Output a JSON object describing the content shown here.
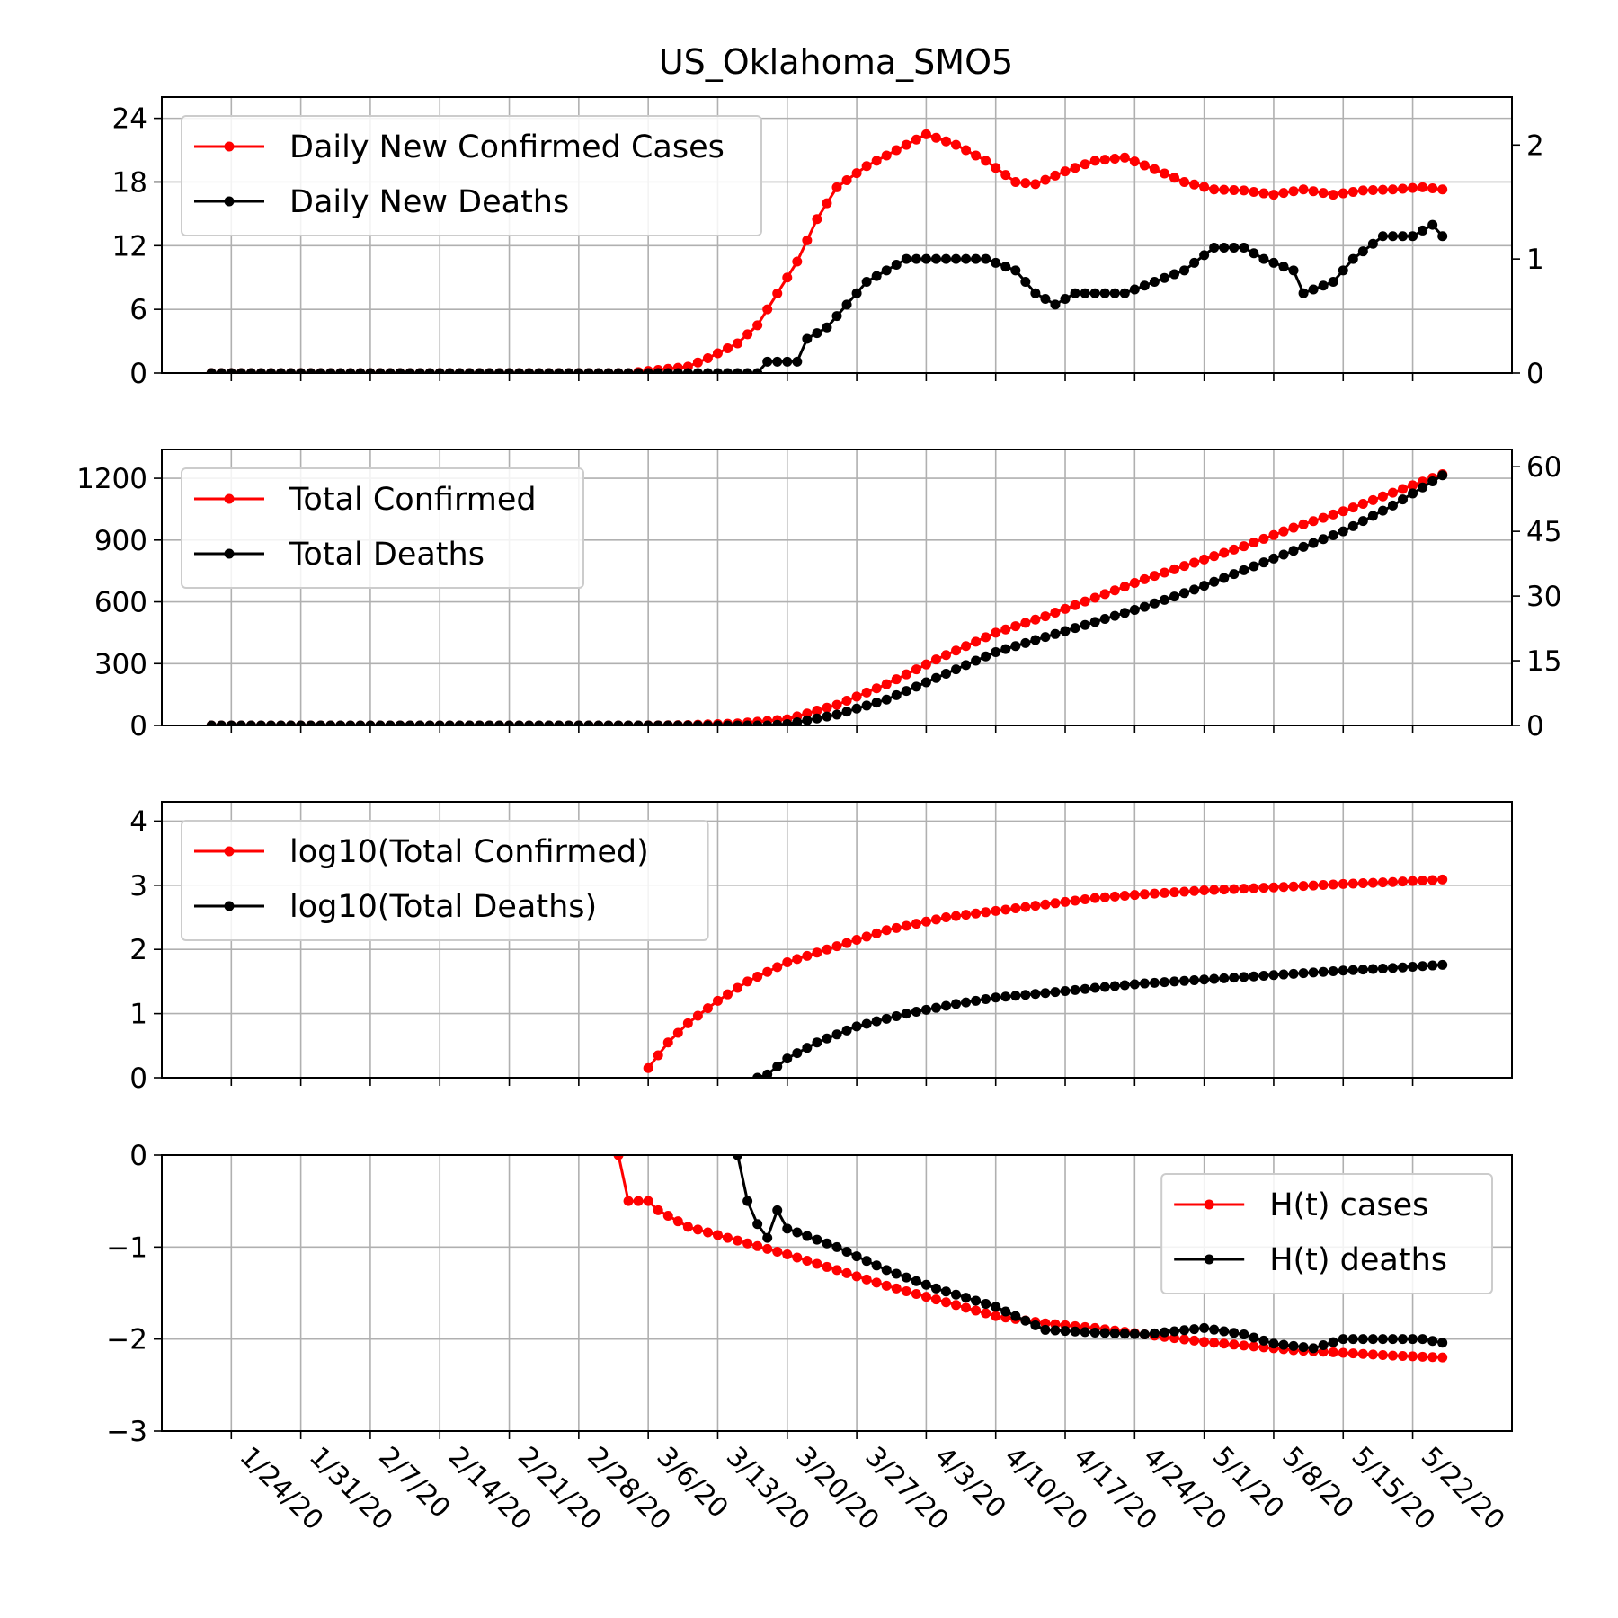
{
  "title": "US_Oklahoma_SMO5",
  "colors": {
    "cases": "#ff0000",
    "deaths": "#000000",
    "grid": "#b0b0b0"
  },
  "chart_data": [
    {
      "type": "line",
      "panel": "daily",
      "ylim_left": [
        0,
        26
      ],
      "yticks_left": [
        "0",
        "6",
        "12",
        "18",
        "24"
      ],
      "ylim_right": [
        0,
        2.42
      ],
      "yticks_right": [
        "0",
        "1",
        "2"
      ],
      "grid": true,
      "legend_placement": "top-left",
      "series": [
        {
          "name": "Daily New Confirmed Cases",
          "axis": "left",
          "color": "#ff0000",
          "knots": [
            [
              "1/22/20",
              0
            ],
            [
              "3/4/20",
              0
            ],
            [
              "3/10/20",
              0.6
            ],
            [
              "3/12/20",
              1.4
            ],
            [
              "3/15/20",
              2.8
            ],
            [
              "3/17/20",
              4.5
            ],
            [
              "3/19/20",
              7.5
            ],
            [
              "3/21/20",
              10.5
            ],
            [
              "3/23/20",
              14.5
            ],
            [
              "3/25/20",
              17.5
            ],
            [
              "3/28/20",
              19.5
            ],
            [
              "3/31/20",
              21
            ],
            [
              "4/3/20",
              22.5
            ],
            [
              "4/6/20",
              21.5
            ],
            [
              "4/9/20",
              20
            ],
            [
              "4/12/20",
              18
            ],
            [
              "4/14/20",
              17.8
            ],
            [
              "4/17/20",
              19
            ],
            [
              "4/20/20",
              20
            ],
            [
              "4/23/20",
              20.3
            ],
            [
              "4/26/20",
              19.2
            ],
            [
              "4/29/20",
              18
            ],
            [
              "5/2/20",
              17.3
            ],
            [
              "5/5/20",
              17.2
            ],
            [
              "5/8/20",
              16.8
            ],
            [
              "5/11/20",
              17.3
            ],
            [
              "5/14/20",
              16.8
            ],
            [
              "5/17/20",
              17.2
            ],
            [
              "5/20/20",
              17.3
            ],
            [
              "5/23/20",
              17.5
            ],
            [
              "5/25/20",
              17.3
            ]
          ]
        },
        {
          "name": "Daily New Deaths",
          "axis": "right",
          "color": "#000000",
          "knots": [
            [
              "1/22/20",
              0
            ],
            [
              "3/17/20",
              0
            ],
            [
              "3/18/20",
              0.1
            ],
            [
              "3/21/20",
              0.1
            ],
            [
              "3/22/20",
              0.3
            ],
            [
              "3/24/20",
              0.4
            ],
            [
              "3/26/20",
              0.6
            ],
            [
              "3/28/20",
              0.8
            ],
            [
              "3/30/20",
              0.9
            ],
            [
              "4/1/20",
              1
            ],
            [
              "4/6/20",
              1
            ],
            [
              "4/9/20",
              1
            ],
            [
              "4/12/20",
              0.9
            ],
            [
              "4/14/20",
              0.7
            ],
            [
              "4/16/20",
              0.6
            ],
            [
              "4/18/20",
              0.7
            ],
            [
              "4/23/20",
              0.7
            ],
            [
              "4/26/20",
              0.8
            ],
            [
              "4/29/20",
              0.9
            ],
            [
              "5/2/20",
              1.1
            ],
            [
              "5/5/20",
              1.1
            ],
            [
              "5/7/20",
              1
            ],
            [
              "5/10/20",
              0.9
            ],
            [
              "5/11/20",
              0.7
            ],
            [
              "5/14/20",
              0.8
            ],
            [
              "5/16/20",
              1
            ],
            [
              "5/19/20",
              1.2
            ],
            [
              "5/22/20",
              1.2
            ],
            [
              "5/24/20",
              1.3
            ],
            [
              "5/25/20",
              1.2
            ]
          ]
        }
      ]
    },
    {
      "type": "line",
      "panel": "cumulative",
      "ylim_left": [
        0,
        1340
      ],
      "yticks_left": [
        "0",
        "300",
        "600",
        "900",
        "1200"
      ],
      "ylim_right": [
        0,
        64
      ],
      "yticks_right": [
        "0",
        "15",
        "30",
        "45",
        "60"
      ],
      "grid": true,
      "legend_placement": "top-left",
      "series": [
        {
          "name": "Total Confirmed",
          "axis": "left",
          "color": "#ff0000",
          "knots": [
            [
              "1/22/20",
              0
            ],
            [
              "3/5/20",
              0
            ],
            [
              "3/10/20",
              2
            ],
            [
              "3/15/20",
              10
            ],
            [
              "3/20/20",
              30
            ],
            [
              "3/25/20",
              100
            ],
            [
              "3/30/20",
              200
            ],
            [
              "4/4/20",
              320
            ],
            [
              "4/10/20",
              450
            ],
            [
              "4/15/20",
              530
            ],
            [
              "4/20/20",
              620
            ],
            [
              "4/25/20",
              710
            ],
            [
              "4/30/20",
              790
            ],
            [
              "5/5/20",
              870
            ],
            [
              "5/10/20",
              960
            ],
            [
              "5/15/20",
              1040
            ],
            [
              "5/20/20",
              1130
            ],
            [
              "5/25/20",
              1220
            ]
          ]
        },
        {
          "name": "Total Deaths",
          "axis": "right",
          "color": "#000000",
          "knots": [
            [
              "1/22/20",
              0
            ],
            [
              "3/18/20",
              0
            ],
            [
              "3/20/20",
              0.3
            ],
            [
              "3/25/20",
              2.5
            ],
            [
              "3/30/20",
              6
            ],
            [
              "4/4/20",
              11
            ],
            [
              "4/10/20",
              17
            ],
            [
              "4/15/20",
              20.5
            ],
            [
              "4/20/20",
              24
            ],
            [
              "4/25/20",
              27.5
            ],
            [
              "4/30/20",
              31.5
            ],
            [
              "5/5/20",
              36
            ],
            [
              "5/10/20",
              40.5
            ],
            [
              "5/15/20",
              45
            ],
            [
              "5/20/20",
              51
            ],
            [
              "5/25/20",
              58
            ]
          ]
        }
      ]
    },
    {
      "type": "line",
      "panel": "log",
      "ylim_left": [
        0,
        4.3
      ],
      "yticks_left": [
        "0",
        "1",
        "2",
        "3",
        "4"
      ],
      "grid": true,
      "legend_placement": "top-left",
      "series": [
        {
          "name": "log10(Total Confirmed)",
          "axis": "left",
          "color": "#ff0000",
          "knots": [
            [
              "3/6/20",
              0.15
            ],
            [
              "3/8/20",
              0.55
            ],
            [
              "3/10/20",
              0.85
            ],
            [
              "3/13/20",
              1.2
            ],
            [
              "3/16/20",
              1.5
            ],
            [
              "3/20/20",
              1.8
            ],
            [
              "3/25/20",
              2.05
            ],
            [
              "3/30/20",
              2.3
            ],
            [
              "4/5/20",
              2.5
            ],
            [
              "4/10/20",
              2.6
            ],
            [
              "4/15/20",
              2.7
            ],
            [
              "4/20/20",
              2.8
            ],
            [
              "4/25/20",
              2.86
            ],
            [
              "5/1/20",
              2.92
            ],
            [
              "5/10/20",
              2.98
            ],
            [
              "5/15/20",
              3.02
            ],
            [
              "5/20/20",
              3.05
            ],
            [
              "5/25/20",
              3.09
            ]
          ]
        },
        {
          "name": "log10(Total Deaths)",
          "axis": "left",
          "color": "#000000",
          "knots": [
            [
              "3/17/20",
              0
            ],
            [
              "3/18/20",
              0.05
            ],
            [
              "3/20/20",
              0.3
            ],
            [
              "3/23/20",
              0.55
            ],
            [
              "3/27/20",
              0.8
            ],
            [
              "4/1/20",
              1.0
            ],
            [
              "4/6/20",
              1.15
            ],
            [
              "4/10/20",
              1.25
            ],
            [
              "4/15/20",
              1.32
            ],
            [
              "4/20/20",
              1.4
            ],
            [
              "4/25/20",
              1.47
            ],
            [
              "5/1/20",
              1.53
            ],
            [
              "5/10/20",
              1.62
            ],
            [
              "5/15/20",
              1.67
            ],
            [
              "5/20/20",
              1.71
            ],
            [
              "5/25/20",
              1.76
            ]
          ]
        }
      ]
    },
    {
      "type": "line",
      "panel": "H(t)",
      "ylim_left": [
        -3,
        0
      ],
      "yticks_left": [
        "−3",
        "−2",
        "−1",
        "0"
      ],
      "grid": true,
      "legend_placement": "top-right",
      "series": [
        {
          "name": "H(t) cases",
          "axis": "left",
          "color": "#ff0000",
          "knots": [
            [
              "3/3/20",
              0
            ],
            [
              "3/4/20",
              -0.5
            ],
            [
              "3/6/20",
              -0.5
            ],
            [
              "3/7/20",
              -0.6
            ],
            [
              "3/10/20",
              -0.78
            ],
            [
              "3/15/20",
              -0.93
            ],
            [
              "3/20/20",
              -1.08
            ],
            [
              "3/25/20",
              -1.25
            ],
            [
              "3/30/20",
              -1.42
            ],
            [
              "4/4/20",
              -1.57
            ],
            [
              "4/10/20",
              -1.75
            ],
            [
              "4/15/20",
              -1.83
            ],
            [
              "4/20/20",
              -1.88
            ],
            [
              "4/25/20",
              -1.95
            ],
            [
              "5/1/20",
              -2.03
            ],
            [
              "5/10/20",
              -2.12
            ],
            [
              "5/15/20",
              -2.15
            ],
            [
              "5/20/20",
              -2.18
            ],
            [
              "5/25/20",
              -2.2
            ]
          ]
        },
        {
          "name": "H(t) deaths",
          "axis": "left",
          "color": "#000000",
          "knots": [
            [
              "3/15/20",
              0
            ],
            [
              "3/16/20",
              -0.5
            ],
            [
              "3/17/20",
              -0.75
            ],
            [
              "3/18/20",
              -0.9
            ],
            [
              "3/19/20",
              -0.6
            ],
            [
              "3/20/20",
              -0.8
            ],
            [
              "3/25/20",
              -1.0
            ],
            [
              "3/30/20",
              -1.25
            ],
            [
              "4/4/20",
              -1.45
            ],
            [
              "4/10/20",
              -1.65
            ],
            [
              "4/15/20",
              -1.9
            ],
            [
              "4/20/20",
              -1.93
            ],
            [
              "4/25/20",
              -1.95
            ],
            [
              "5/1/20",
              -1.88
            ],
            [
              "5/5/20",
              -1.95
            ],
            [
              "5/8/20",
              -2.05
            ],
            [
              "5/12/20",
              -2.1
            ],
            [
              "5/15/20",
              -2.0
            ],
            [
              "5/20/20",
              -2.0
            ],
            [
              "5/23/20",
              -2.0
            ],
            [
              "5/25/20",
              -2.04
            ]
          ]
        }
      ]
    }
  ],
  "x_range": [
    "1/17/20",
    "6/1/20"
  ],
  "x_start": "1/22/20",
  "x_end": "5/25/20",
  "xticks": [
    "1/24/20",
    "1/31/20",
    "2/7/20",
    "2/14/20",
    "2/21/20",
    "2/28/20",
    "3/6/20",
    "3/13/20",
    "3/20/20",
    "3/27/20",
    "4/3/20",
    "4/10/20",
    "4/17/20",
    "4/24/20",
    "5/1/20",
    "5/8/20",
    "5/15/20",
    "5/22/20"
  ]
}
